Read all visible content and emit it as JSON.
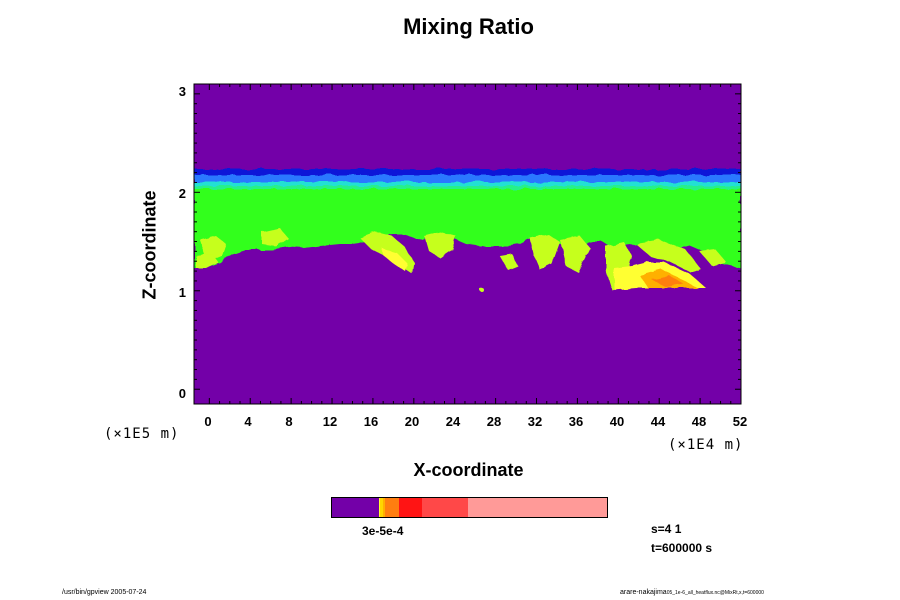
{
  "chart_data": {
    "type": "heatmap",
    "title": "Mixing Ratio",
    "xlabel": "X-coordinate",
    "ylabel": "Z-coordinate",
    "xlim": [
      -1.5,
      52
    ],
    "ylim": [
      -0.15,
      3.1
    ],
    "x_ticks": [
      "0",
      "4",
      "8",
      "12",
      "16",
      "20",
      "24",
      "28",
      "32",
      "36",
      "40",
      "44",
      "48",
      "52"
    ],
    "y_ticks": [
      "0",
      "1",
      "2",
      "3"
    ],
    "x_scale_label": "(×1E4 m)",
    "y_scale_label": "(×1E5 m)",
    "background_color": "#7300a8",
    "layer": {
      "bottom": 1.45,
      "top": 2.2,
      "color": "#33ff1c"
    },
    "colorbar": {
      "label": "3e-5e-4",
      "segments": [
        {
          "color": "#7300a8",
          "fraction": 0.17
        },
        {
          "color": "#ffff30",
          "fraction": 0.006
        },
        {
          "color": "#ffd600",
          "fraction": 0.008
        },
        {
          "color": "#ffb000",
          "fraction": 0.01
        },
        {
          "color": "#ff7e10",
          "fraction": 0.05
        },
        {
          "color": "#ff1414",
          "fraction": 0.083
        },
        {
          "color": "#ff4848",
          "fraction": 0.167
        },
        {
          "color": "#ff9a98",
          "fraction": 0.506
        }
      ]
    }
  },
  "info": {
    "s": "s=4 1",
    "t": "t=600000 s"
  },
  "footer": {
    "left": "/usr/bin/gpview 2005-07-24",
    "right_main": "arare-nakajima",
    "right_small": "05_1e-6_all_heatflux.nc@MixRt,x,t=600000"
  }
}
